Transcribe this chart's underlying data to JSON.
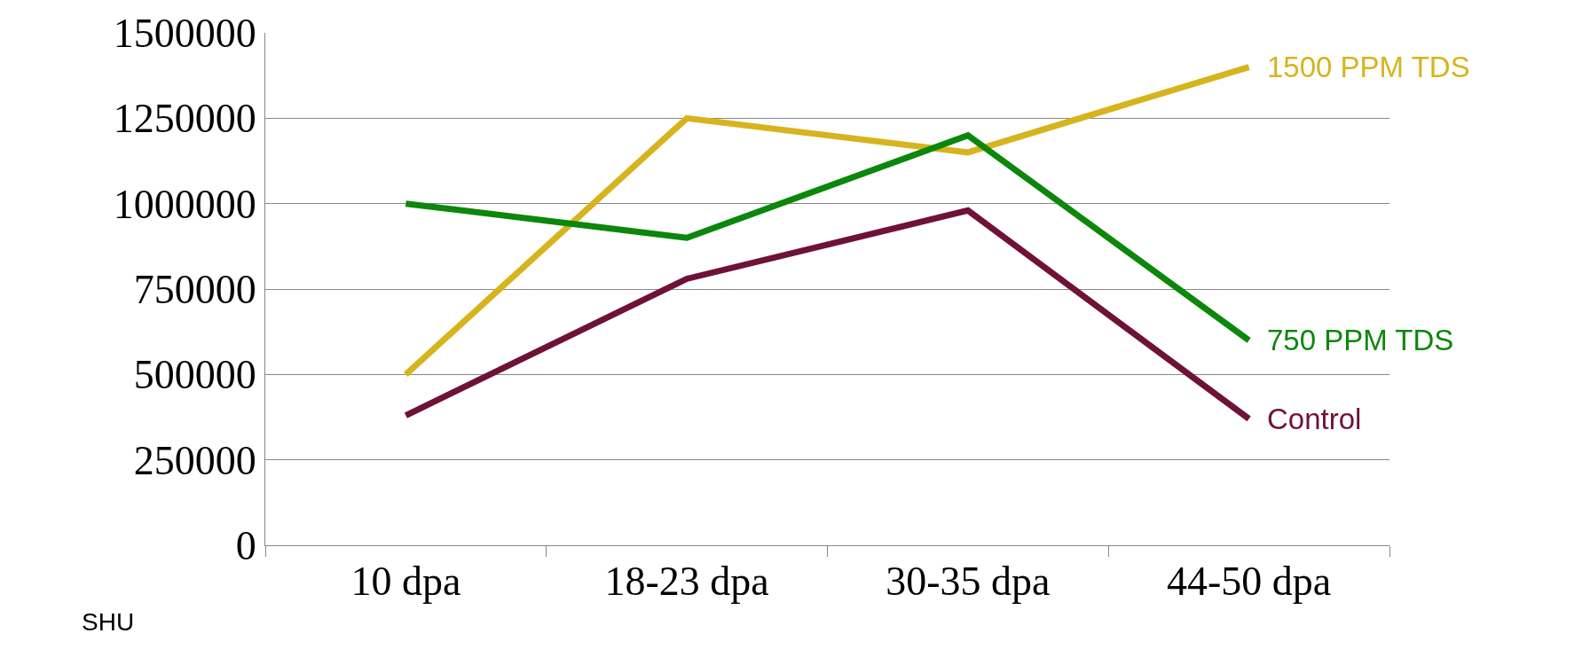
{
  "chart_data": {
    "type": "line",
    "ylabel": "SHU",
    "categories": [
      "10 dpa",
      "18-23 dpa",
      "30-35 dpa",
      "44-50 dpa"
    ],
    "series": [
      {
        "name": "1500 PPM TDS",
        "color": "#d6b41e",
        "values": [
          500000,
          1250000,
          1150000,
          1400000
        ]
      },
      {
        "name": "750 PPM TDS",
        "color": "#0b870b",
        "values": [
          1000000,
          900000,
          1200000,
          600000
        ]
      },
      {
        "name": "Control",
        "color": "#6e1238",
        "values": [
          380000,
          780000,
          980000,
          370000
        ]
      }
    ],
    "ylim": [
      0,
      1500000
    ],
    "yticks": [
      0,
      250000,
      500000,
      750000,
      1000000,
      1250000,
      1500000
    ],
    "grid": "y",
    "legend": false,
    "marker": "none",
    "line_style": "solid"
  }
}
